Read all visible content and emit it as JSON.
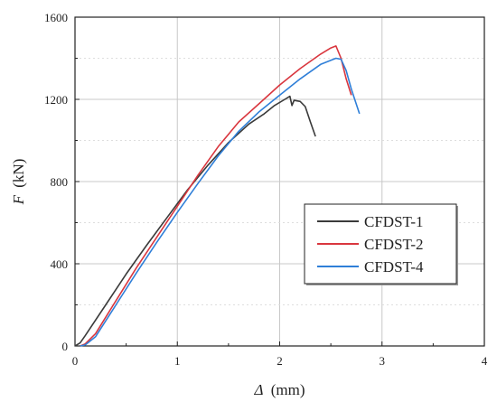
{
  "chart_data": {
    "type": "line",
    "title": "",
    "xlabel": "Δ (mm)",
    "ylabel": "F (kN)",
    "xlabel_symbol": "Δ",
    "xlabel_unit": "(mm)",
    "ylabel_symbol": "F",
    "ylabel_unit": "(kN)",
    "xlim": [
      0,
      4
    ],
    "ylim": [
      0,
      1600
    ],
    "xticks": [
      0,
      1,
      2,
      3,
      4
    ],
    "yticks": [
      0,
      400,
      800,
      1200,
      1600
    ],
    "grid": true,
    "legend_position": "bottom-right",
    "series": [
      {
        "name": "CFDST-1",
        "color": "#3a3a3a",
        "x": [
          0.0,
          0.05,
          0.1,
          0.3,
          0.5,
          0.7,
          0.9,
          1.1,
          1.3,
          1.5,
          1.7,
          1.85,
          1.95,
          2.05,
          2.1,
          2.12,
          2.14,
          2.2,
          2.25,
          2.3,
          2.35
        ],
        "y": [
          0,
          15,
          50,
          200,
          350,
          490,
          625,
          760,
          880,
          990,
          1080,
          1130,
          1170,
          1200,
          1215,
          1170,
          1195,
          1190,
          1165,
          1090,
          1020
        ]
      },
      {
        "name": "CFDST-2",
        "color": "#d9363e",
        "x": [
          0.05,
          0.1,
          0.2,
          0.4,
          0.6,
          0.8,
          1.0,
          1.2,
          1.4,
          1.6,
          1.8,
          2.0,
          2.2,
          2.4,
          2.5,
          2.55,
          2.6,
          2.65,
          2.7
        ],
        "y": [
          0,
          10,
          60,
          220,
          380,
          530,
          680,
          830,
          970,
          1090,
          1180,
          1270,
          1350,
          1420,
          1450,
          1460,
          1400,
          1300,
          1220
        ]
      },
      {
        "name": "CFDST-4",
        "color": "#2f7fd8",
        "x": [
          0.05,
          0.1,
          0.2,
          0.4,
          0.6,
          0.8,
          1.0,
          1.2,
          1.4,
          1.6,
          1.8,
          2.0,
          2.2,
          2.4,
          2.5,
          2.55,
          2.6,
          2.65,
          2.7,
          2.78
        ],
        "y": [
          0,
          5,
          45,
          200,
          355,
          505,
          650,
          790,
          925,
          1045,
          1140,
          1220,
          1300,
          1370,
          1390,
          1400,
          1395,
          1340,
          1250,
          1130
        ]
      }
    ]
  }
}
